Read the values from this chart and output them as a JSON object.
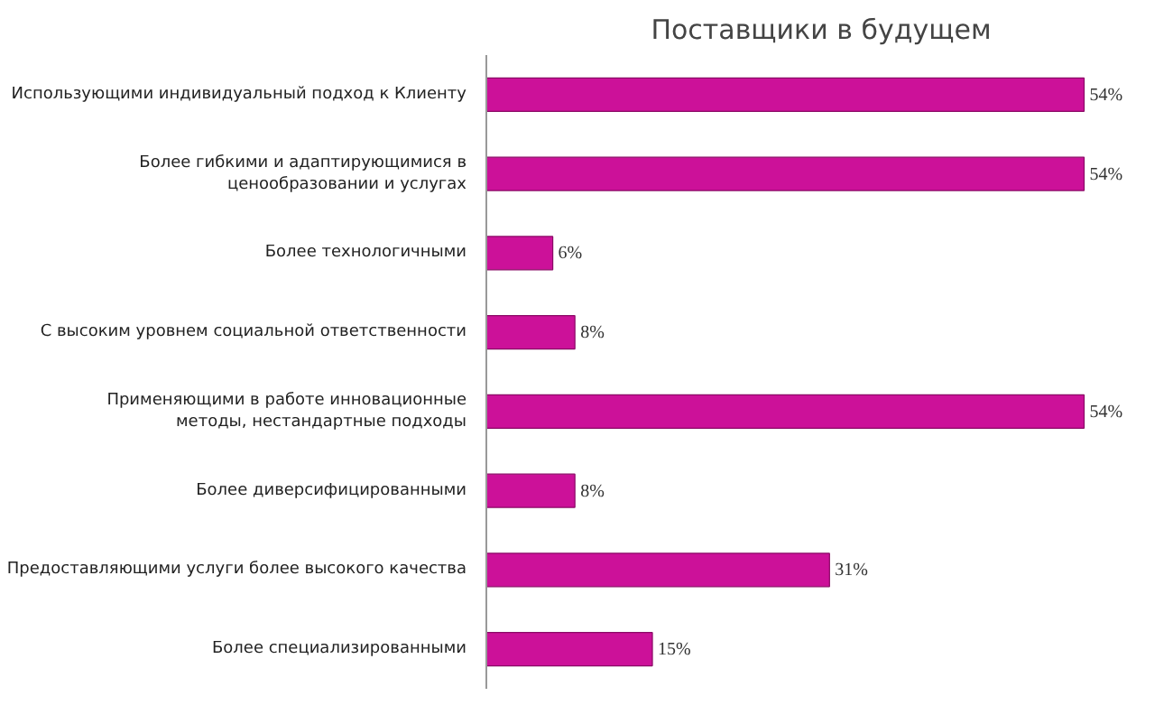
{
  "chart_data": {
    "type": "bar",
    "orientation": "horizontal",
    "title": "Поставщики в будущем",
    "categories": [
      "Использующими индивидуальный подход к Клиенту",
      "Более гибкими и адаптирующимися в\nценообразовании и услугах",
      "Более технологичными",
      "С высоким уровнем социальной ответственности",
      "Применяющими в работе инновационные\nметоды, нестандартные подходы",
      "Более диверсифицированными",
      "Предоставляющими услуги более высокого качества",
      "Более специализированными"
    ],
    "values": [
      54,
      54,
      6,
      8,
      54,
      8,
      31,
      15
    ],
    "value_labels": [
      "54%",
      "54%",
      "6%",
      "8%",
      "54%",
      "8%",
      "31%",
      "15%"
    ],
    "color": "#cc1199",
    "grid": false
  }
}
